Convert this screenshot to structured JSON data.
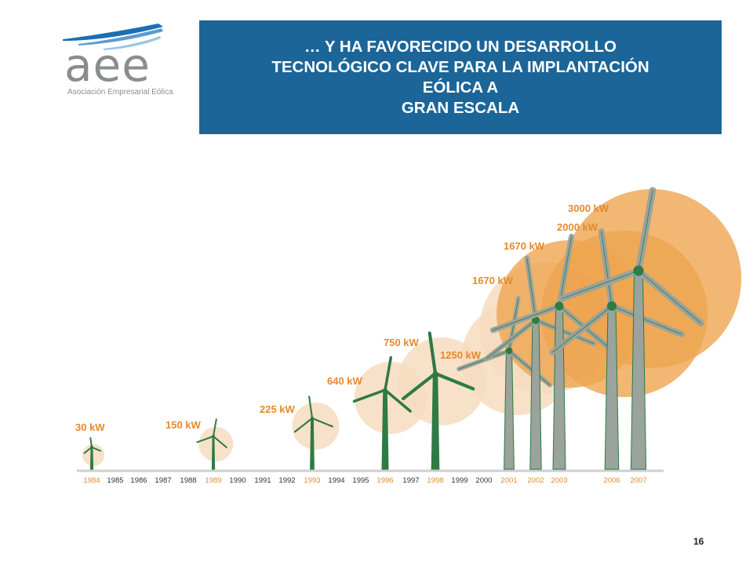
{
  "logo": {
    "text": "aee",
    "subtitle": "Asociación Empresarial Eólica"
  },
  "title": {
    "lines": [
      "… Y HA FAVORECIDO UN DESARROLLO",
      "TECNOLÓGICO CLAVE PARA LA IMPLANTACIÓN",
      "EÓLICA A",
      "GRAN ESCALA"
    ]
  },
  "timeline": {
    "years": [
      "1984",
      "1985",
      "1986",
      "1987",
      "1988",
      "1989",
      "1990",
      "1991",
      "1992",
      "1993",
      "1994",
      "1995",
      "1996",
      "1997",
      "1998",
      "1999",
      "2000",
      "2001",
      "2002",
      "2003",
      "2006",
      "2007"
    ],
    "highlighted_years": [
      "1984",
      "1989",
      "1993",
      "1996",
      "1998",
      "2001",
      "2002",
      "2003",
      "2006",
      "2007"
    ]
  },
  "turbines": [
    {
      "year": "1984",
      "label": "30 kW"
    },
    {
      "year": "1989",
      "label": "150 kW"
    },
    {
      "year": "1993",
      "label": "225 kW"
    },
    {
      "year": "1996",
      "label": "640 kW"
    },
    {
      "year": "1998",
      "label": "750 kW"
    },
    {
      "year": "2001",
      "label": "1250 kW"
    },
    {
      "year": "2002",
      "label": "1670 kW"
    },
    {
      "year": "2003",
      "label": "1670 kW"
    },
    {
      "year": "2006",
      "label": "2000 kW"
    },
    {
      "year": "2007",
      "label": "3000 kW"
    }
  ],
  "colors": {
    "title_bg": "#1b6599",
    "label_orange": "#e58a2e",
    "tower_gray": "#9aa39c",
    "tower_green": "#2f7a45",
    "circle_light": "#f6dcc0",
    "circle_dark": "#eea550"
  },
  "page_number": "16"
}
